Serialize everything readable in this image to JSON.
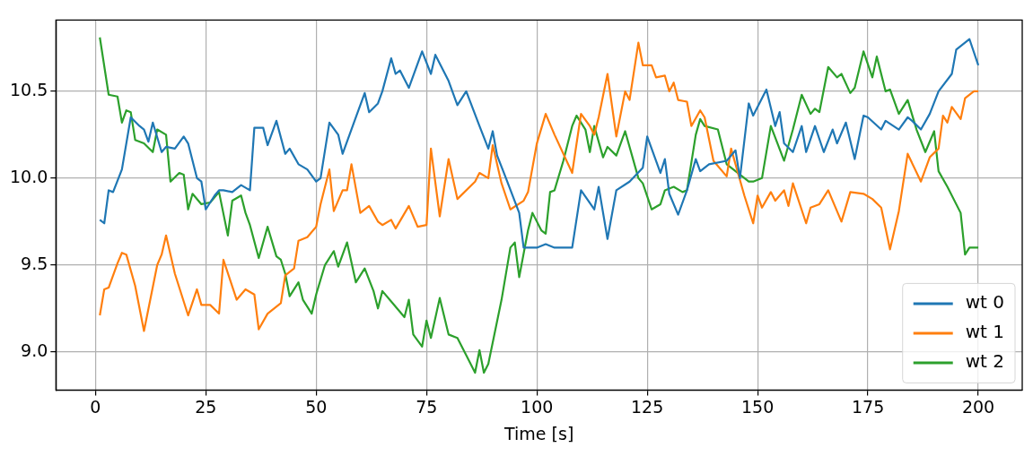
{
  "chart_data": {
    "type": "line",
    "xlabel": "Time [s]",
    "xlim": [
      -8.95,
      209.95
    ],
    "xticks": [
      0,
      25,
      50,
      75,
      100,
      125,
      150,
      175,
      200
    ],
    "ylim": [
      8.78,
      10.91
    ],
    "yticks": [
      {
        "value": 9.0,
        "label": "9.0"
      },
      9.5,
      {
        "value": 10.0,
        "label": "10.0"
      },
      10.5
    ],
    "grid": true,
    "legend": "bottom right",
    "marker": "none",
    "line_style": "solid",
    "series": [
      {
        "name": "wt 0",
        "color": "#1f77b4",
        "x": [
          1,
          2,
          3,
          4,
          6,
          8,
          10,
          11,
          12,
          13,
          15,
          16,
          18,
          20,
          21,
          23,
          24,
          25,
          27,
          28,
          29,
          31,
          33,
          35,
          36,
          38,
          39,
          41,
          43,
          44,
          46,
          48,
          50,
          51,
          53,
          55,
          56,
          59,
          61,
          62,
          64,
          65,
          67,
          68,
          69,
          71,
          74,
          76,
          77,
          80,
          82,
          84,
          87,
          89,
          90,
          91,
          93,
          96,
          97,
          100,
          102,
          104,
          108,
          110,
          113,
          114,
          116,
          118,
          121,
          124,
          125,
          128,
          129,
          130,
          132,
          134,
          136,
          137,
          139,
          143,
          145,
          146,
          148,
          149,
          152,
          154,
          155,
          156,
          158,
          160,
          161,
          163,
          165,
          167,
          168,
          170,
          172,
          174,
          175,
          178,
          179,
          182,
          184,
          185,
          187,
          189,
          191,
          194,
          195,
          198,
          200
        ],
        "values": [
          9.76,
          9.74,
          9.93,
          9.92,
          10.05,
          10.35,
          10.3,
          10.28,
          10.21,
          10.32,
          10.15,
          10.18,
          10.17,
          10.24,
          10.2,
          10.0,
          9.98,
          9.82,
          9.9,
          9.93,
          9.93,
          9.92,
          9.96,
          9.93,
          10.29,
          10.29,
          10.19,
          10.33,
          10.14,
          10.17,
          10.08,
          10.05,
          9.98,
          10.0,
          10.32,
          10.25,
          10.14,
          10.35,
          10.49,
          10.38,
          10.43,
          10.5,
          10.69,
          10.6,
          10.62,
          10.52,
          10.73,
          10.6,
          10.71,
          10.56,
          10.42,
          10.5,
          10.3,
          10.17,
          10.27,
          10.13,
          10.0,
          9.8,
          9.6,
          9.6,
          9.62,
          9.6,
          9.6,
          9.93,
          9.82,
          9.95,
          9.65,
          9.93,
          9.98,
          10.06,
          10.24,
          10.03,
          10.11,
          9.91,
          9.79,
          9.93,
          10.11,
          10.04,
          10.08,
          10.1,
          10.16,
          10.0,
          10.43,
          10.36,
          10.51,
          10.3,
          10.38,
          10.2,
          10.15,
          10.3,
          10.15,
          10.3,
          10.15,
          10.28,
          10.2,
          10.32,
          10.11,
          10.36,
          10.35,
          10.28,
          10.33,
          10.28,
          10.35,
          10.33,
          10.28,
          10.37,
          10.5,
          10.6,
          10.74,
          10.8,
          10.65
        ]
      },
      {
        "name": "wt 1",
        "color": "#ff7f0e",
        "x": [
          1,
          2,
          3,
          5,
          6,
          7,
          9,
          11,
          14,
          15,
          16,
          18,
          21,
          23,
          24,
          26,
          28,
          29,
          32,
          34,
          36,
          37,
          39,
          42,
          43,
          45,
          46,
          48,
          50,
          51,
          53,
          54,
          56,
          57,
          58,
          60,
          62,
          64,
          65,
          67,
          68,
          71,
          73,
          75,
          76,
          78,
          80,
          82,
          86,
          87,
          89,
          90,
          92,
          94,
          97,
          98,
          100,
          102,
          104,
          108,
          110,
          112,
          113,
          114,
          116,
          118,
          120,
          121,
          123,
          124,
          126,
          127,
          129,
          130,
          131,
          132,
          134,
          135,
          137,
          138,
          140,
          143,
          144,
          147,
          149,
          150,
          151,
          153,
          154,
          156,
          157,
          158,
          161,
          162,
          164,
          166,
          169,
          171,
          174,
          176,
          178,
          180,
          182,
          184,
          187,
          189,
          191,
          192,
          193,
          194,
          196,
          197,
          199,
          200
        ],
        "values": [
          9.21,
          9.36,
          9.37,
          9.51,
          9.57,
          9.56,
          9.38,
          9.12,
          9.5,
          9.56,
          9.67,
          9.45,
          9.21,
          9.36,
          9.27,
          9.27,
          9.22,
          9.53,
          9.3,
          9.36,
          9.33,
          9.13,
          9.22,
          9.28,
          9.44,
          9.48,
          9.64,
          9.66,
          9.72,
          9.85,
          10.05,
          9.81,
          9.93,
          9.93,
          10.08,
          9.8,
          9.84,
          9.75,
          9.73,
          9.76,
          9.71,
          9.84,
          9.72,
          9.73,
          10.17,
          9.78,
          10.11,
          9.88,
          9.98,
          10.03,
          10.0,
          10.19,
          9.97,
          9.82,
          9.87,
          9.92,
          10.2,
          10.37,
          10.25,
          10.03,
          10.37,
          10.3,
          10.25,
          10.35,
          10.6,
          10.24,
          10.5,
          10.45,
          10.78,
          10.65,
          10.65,
          10.58,
          10.59,
          10.5,
          10.55,
          10.45,
          10.44,
          10.3,
          10.39,
          10.35,
          10.1,
          10.01,
          10.17,
          9.9,
          9.74,
          9.9,
          9.83,
          9.92,
          9.87,
          9.93,
          9.84,
          9.97,
          9.74,
          9.83,
          9.85,
          9.93,
          9.75,
          9.92,
          9.91,
          9.88,
          9.83,
          9.59,
          9.81,
          10.14,
          9.98,
          10.12,
          10.17,
          10.36,
          10.32,
          10.41,
          10.34,
          10.46,
          10.5,
          10.5
        ]
      },
      {
        "name": "wt 2",
        "color": "#2ca02c",
        "x": [
          1,
          3,
          5,
          6,
          7,
          8,
          9,
          11,
          13,
          14,
          16,
          17,
          19,
          20,
          21,
          22,
          24,
          26,
          28,
          30,
          31,
          33,
          34,
          35,
          37,
          39,
          41,
          42,
          43,
          44,
          46,
          47,
          49,
          50,
          52,
          54,
          55,
          57,
          59,
          61,
          63,
          64,
          65,
          67,
          70,
          71,
          72,
          74,
          75,
          76,
          78,
          80,
          82,
          84,
          86,
          87,
          88,
          89,
          92,
          94,
          95,
          96,
          98,
          99,
          101,
          102,
          103,
          104,
          106,
          108,
          109,
          111,
          112,
          113,
          115,
          116,
          118,
          120,
          123,
          124,
          126,
          128,
          129,
          131,
          133,
          134,
          136,
          137,
          138,
          141,
          143,
          146,
          148,
          149,
          151,
          153,
          156,
          158,
          160,
          162,
          163,
          164,
          166,
          168,
          169,
          171,
          172,
          174,
          176,
          177,
          179,
          180,
          182,
          184,
          186,
          188,
          190,
          191,
          193,
          196,
          197,
          198,
          200
        ],
        "values": [
          10.81,
          10.48,
          10.47,
          10.32,
          10.39,
          10.38,
          10.22,
          10.2,
          10.15,
          10.28,
          10.25,
          9.98,
          10.03,
          10.02,
          9.82,
          9.91,
          9.85,
          9.86,
          9.92,
          9.67,
          9.87,
          9.9,
          9.8,
          9.73,
          9.54,
          9.72,
          9.55,
          9.53,
          9.45,
          9.32,
          9.4,
          9.3,
          9.22,
          9.33,
          9.5,
          9.58,
          9.49,
          9.63,
          9.4,
          9.48,
          9.35,
          9.25,
          9.35,
          9.29,
          9.2,
          9.3,
          9.1,
          9.03,
          9.18,
          9.08,
          9.31,
          9.1,
          9.08,
          8.98,
          8.88,
          9.01,
          8.88,
          8.93,
          9.3,
          9.6,
          9.63,
          9.43,
          9.7,
          9.8,
          9.7,
          9.68,
          9.92,
          9.93,
          10.1,
          10.3,
          10.36,
          10.28,
          10.15,
          10.3,
          10.12,
          10.18,
          10.13,
          10.27,
          10.0,
          9.97,
          9.82,
          9.85,
          9.93,
          9.95,
          9.92,
          9.93,
          10.25,
          10.34,
          10.3,
          10.28,
          10.08,
          10.02,
          9.98,
          9.98,
          10.0,
          10.3,
          10.1,
          10.28,
          10.48,
          10.37,
          10.4,
          10.38,
          10.64,
          10.58,
          10.6,
          10.49,
          10.52,
          10.73,
          10.58,
          10.7,
          10.5,
          10.51,
          10.37,
          10.45,
          10.28,
          10.15,
          10.27,
          10.04,
          9.95,
          9.8,
          9.56,
          9.6,
          9.6
        ]
      }
    ]
  }
}
